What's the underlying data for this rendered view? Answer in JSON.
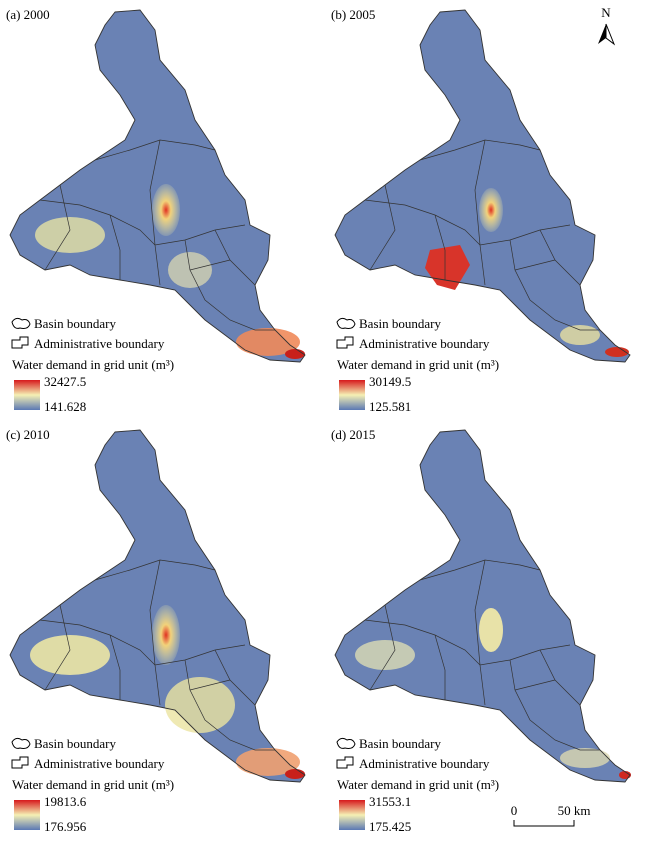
{
  "north_arrow": "N",
  "scale_bar": {
    "start": "0",
    "end": "50 km"
  },
  "panels": [
    {
      "label": "(a) 2000",
      "legend": {
        "basin": "Basin boundary",
        "admin": "Administrative boundary",
        "title": "Water demand in grid unit (m³)",
        "max": 32427.5,
        "min": 141.628
      }
    },
    {
      "label": "(b) 2005",
      "legend": {
        "basin": "Basin boundary",
        "admin": "Administrative boundary",
        "title": "Water demand in grid unit (m³)",
        "max": 30149.5,
        "min": 125.581
      }
    },
    {
      "label": "(c) 2010",
      "legend": {
        "basin": "Basin boundary",
        "admin": "Administrative boundary",
        "title": "Water demand in grid unit (m³)",
        "max": 19813.6,
        "min": 176.956
      }
    },
    {
      "label": "(d) 2015",
      "legend": {
        "basin": "Basin boundary",
        "admin": "Administrative boundary",
        "title": "Water demand in grid unit (m³)",
        "max": 31553.1,
        "min": 175.425
      }
    }
  ]
}
